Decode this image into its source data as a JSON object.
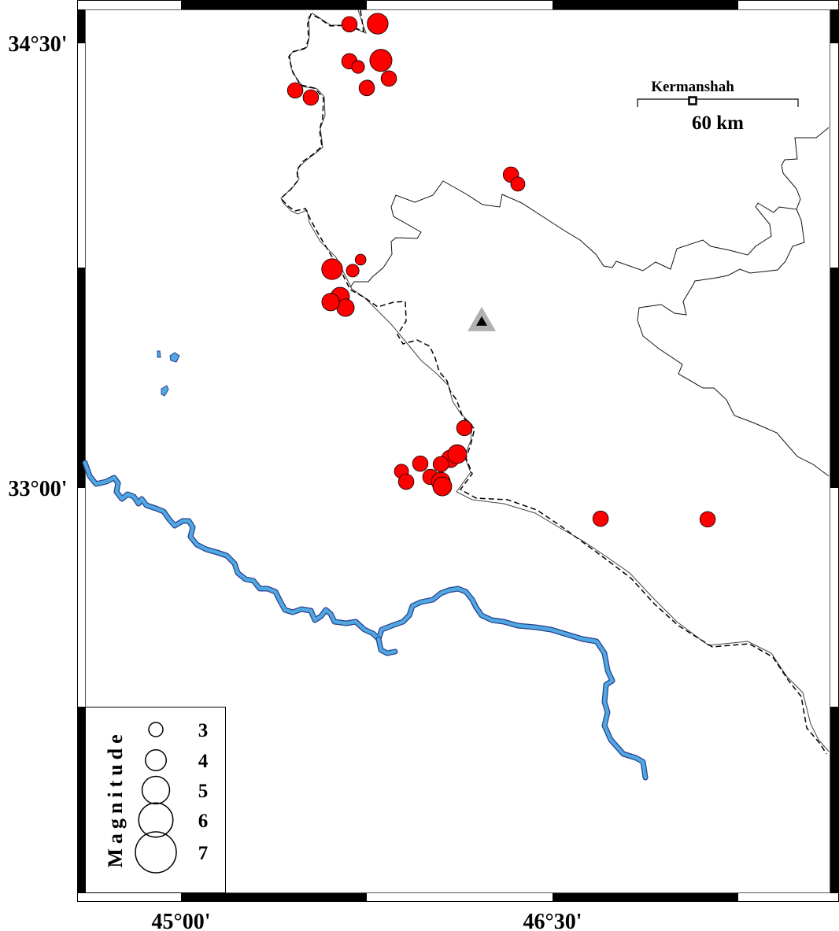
{
  "map": {
    "axes": {
      "lat_labels": [
        {
          "value": 34.5,
          "text": "34°30'"
        },
        {
          "value": 33.0,
          "text": "33°00'"
        }
      ],
      "lon_labels": [
        {
          "value": 45.0,
          "text": "45°00'"
        },
        {
          "value": 46.5,
          "text": "46°30'"
        }
      ]
    },
    "scale_bar": {
      "label": "60 km"
    },
    "city": {
      "name": "Kermanshah",
      "lon": 47.066,
      "lat": 34.306
    },
    "station": {
      "lon": 46.214,
      "lat": 33.563,
      "symbol": "triangle-icon"
    },
    "legend": {
      "title": "Magnitude",
      "entries": [
        {
          "mag": 3,
          "label": "3"
        },
        {
          "mag": 4,
          "label": "4"
        },
        {
          "mag": 5,
          "label": "5"
        },
        {
          "mag": 6,
          "label": "6"
        },
        {
          "mag": 7,
          "label": "7"
        }
      ]
    },
    "colors": {
      "earthquake": "#ff0000",
      "river_fill": "#4fa8e0",
      "river_outline": "#2a3f8f",
      "station_outer": "#b0b0b0",
      "station_inner": "#000000"
    },
    "earthquakes": [
      {
        "lon": 45.68,
        "lat": 34.564,
        "mag": 3.2
      },
      {
        "lon": 45.794,
        "lat": 34.566,
        "mag": 4.0
      },
      {
        "lon": 45.68,
        "lat": 34.439,
        "mag": 3.2
      },
      {
        "lon": 45.715,
        "lat": 34.42,
        "mag": 2.8
      },
      {
        "lon": 45.807,
        "lat": 34.442,
        "mag": 4.2
      },
      {
        "lon": 45.839,
        "lat": 34.381,
        "mag": 3.2
      },
      {
        "lon": 45.753,
        "lat": 34.354,
        "mag": 2.8
      },
      {
        "lon": 45.75,
        "lat": 34.349,
        "mag": 3.2
      },
      {
        "lon": 45.461,
        "lat": 34.341,
        "mag": 3.2
      },
      {
        "lon": 45.524,
        "lat": 34.317,
        "mag": 3.2
      },
      {
        "lon": 46.332,
        "lat": 34.057,
        "mag": 3.2
      },
      {
        "lon": 46.36,
        "lat": 34.025,
        "mag": 3.0
      },
      {
        "lon": 45.61,
        "lat": 33.738,
        "mag": 4.0
      },
      {
        "lon": 45.693,
        "lat": 33.733,
        "mag": 2.8
      },
      {
        "lon": 45.725,
        "lat": 33.77,
        "mag": 2.5
      },
      {
        "lon": 45.642,
        "lat": 33.645,
        "mag": 3.7
      },
      {
        "lon": 45.664,
        "lat": 33.608,
        "mag": 3.5
      },
      {
        "lon": 45.604,
        "lat": 33.627,
        "mag": 3.5
      },
      {
        "lon": 46.144,
        "lat": 33.202,
        "mag": 3.2
      },
      {
        "lon": 46.087,
        "lat": 33.098,
        "mag": 3.5
      },
      {
        "lon": 46.115,
        "lat": 33.114,
        "mag": 3.7
      },
      {
        "lon": 46.049,
        "lat": 33.08,
        "mag": 3.2
      },
      {
        "lon": 45.966,
        "lat": 33.082,
        "mag": 3.2
      },
      {
        "lon": 45.89,
        "lat": 33.056,
        "mag": 3.0
      },
      {
        "lon": 45.909,
        "lat": 33.021,
        "mag": 3.2
      },
      {
        "lon": 46.007,
        "lat": 33.037,
        "mag": 3.2
      },
      {
        "lon": 46.049,
        "lat": 33.021,
        "mag": 3.7
      },
      {
        "lon": 46.055,
        "lat": 33.005,
        "mag": 3.7
      },
      {
        "lon": 46.694,
        "lat": 32.896,
        "mag": 3.2
      },
      {
        "lon": 47.126,
        "lat": 32.894,
        "mag": 3.2
      }
    ]
  }
}
